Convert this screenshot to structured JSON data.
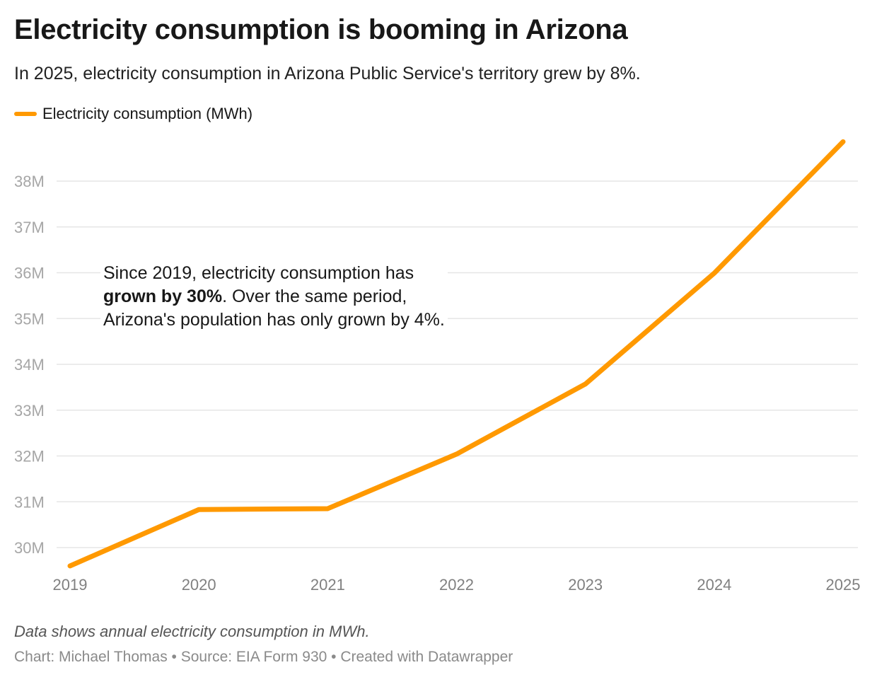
{
  "title": "Electricity consumption is booming in Arizona",
  "subtitle": "In 2025, electricity consumption in Arizona Public Service's territory grew by 8%.",
  "annotation": {
    "line1": "Since 2019, electricity consumption has",
    "bold": "grown by 30%",
    "line2": ". Over the same period,",
    "line3": "Arizona's population has only grown by 4%."
  },
  "notes": "Data shows annual electricity consumption in MWh.",
  "footer": "Chart: Michael Thomas • Source: EIA Form 930 • Created with Datawrapper",
  "colors": {
    "line": "#ff9900",
    "grid": "#e6e6e6"
  },
  "chart_data": {
    "type": "line",
    "title": "Electricity consumption is booming in Arizona",
    "x": [
      2019,
      2020,
      2021,
      2022,
      2023,
      2024,
      2025
    ],
    "series": [
      {
        "name": "Electricity consumption (MWh)",
        "values": [
          29.6,
          30.83,
          30.85,
          32.04,
          33.57,
          35.99,
          38.86
        ],
        "unit": "M"
      }
    ],
    "yticks": [
      30,
      31,
      32,
      33,
      34,
      35,
      36,
      37,
      38
    ],
    "ytick_labels": [
      "30M",
      "31M",
      "32M",
      "33M",
      "34M",
      "35M",
      "36M",
      "37M",
      "38M"
    ],
    "xtick_labels": [
      "2019",
      "2020",
      "2021",
      "2022",
      "2023",
      "2024",
      "2025"
    ],
    "ylim": [
      29.6,
      38.9
    ],
    "grid": true,
    "legend": "top-left"
  }
}
